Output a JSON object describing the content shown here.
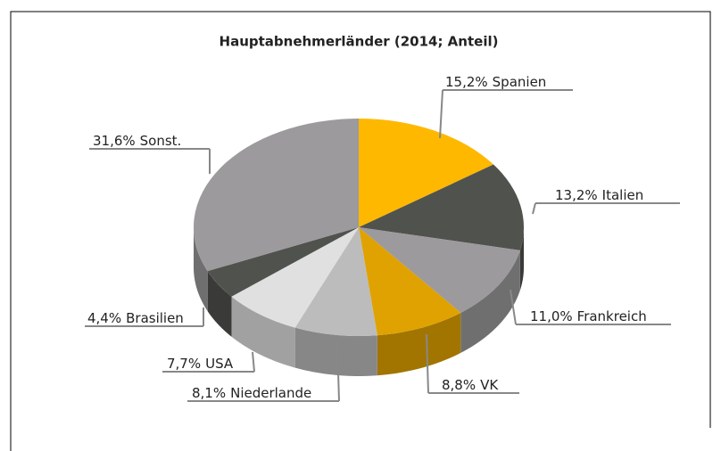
{
  "chart_data": {
    "type": "pie",
    "title": "Hauptabnehmerländer (2014; Anteil)",
    "categories": [
      "Spanien",
      "Italien",
      "Frankreich",
      "VK",
      "Niederlande",
      "USA",
      "Brasilien",
      "Sonst."
    ],
    "values": [
      15.2,
      13.2,
      11.0,
      8.8,
      8.1,
      7.7,
      4.4,
      31.6
    ],
    "value_labels": [
      "15,2%",
      "13,2%",
      "11,0%",
      "8,8%",
      "8,1%",
      "7,7%",
      "4,4%",
      "31,6%"
    ],
    "colors": [
      "#ffb800",
      "#50524e",
      "#9c9a9c",
      "#e0a200",
      "#bcbcbc",
      "#e0e0e0",
      "#50524e",
      "#9c9a9c"
    ]
  }
}
